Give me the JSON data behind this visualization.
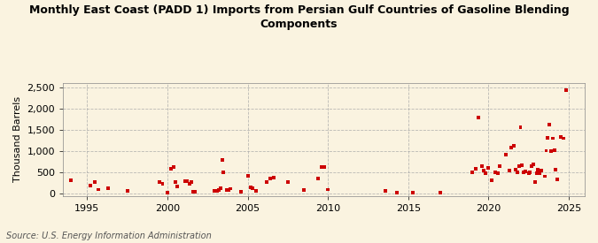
{
  "title": "Monthly East Coast (PADD 1) Imports from Persian Gulf Countries of Gasoline Blending\nComponents",
  "ylabel": "Thousand Barrels",
  "source": "Source: U.S. Energy Information Administration",
  "background_color": "#faf3e0",
  "marker_color": "#cc0000",
  "grid_color": "#aaaaaa",
  "xlim": [
    1993.5,
    2026.0
  ],
  "ylim": [
    -50,
    2600
  ],
  "yticks": [
    0,
    500,
    1000,
    1500,
    2000,
    2500
  ],
  "ytick_labels": [
    "0",
    "500",
    "1,000",
    "1,500",
    "2,000",
    "2,500"
  ],
  "xticks": [
    1995,
    2000,
    2005,
    2010,
    2015,
    2020,
    2025
  ],
  "data_x": [
    1994.0,
    1995.2,
    1995.5,
    1995.7,
    1996.3,
    1997.5,
    1999.5,
    1999.7,
    2000.0,
    2000.2,
    2000.4,
    2000.5,
    2000.6,
    2001.1,
    2001.2,
    2001.4,
    2001.5,
    2001.6,
    2001.7,
    2002.9,
    2003.1,
    2003.2,
    2003.3,
    2003.4,
    2003.5,
    2003.7,
    2003.8,
    2003.9,
    2004.6,
    2005.0,
    2005.2,
    2005.3,
    2005.5,
    2006.2,
    2006.4,
    2006.6,
    2007.5,
    2008.5,
    2009.4,
    2009.6,
    2009.8,
    2010.0,
    2013.6,
    2014.3,
    2015.3,
    2017.0,
    2019.0,
    2019.2,
    2019.4,
    2019.6,
    2019.7,
    2019.8,
    2020.0,
    2020.2,
    2020.4,
    2020.6,
    2020.7,
    2021.1,
    2021.3,
    2021.4,
    2021.6,
    2021.7,
    2021.8,
    2021.9,
    2022.0,
    2022.1,
    2022.2,
    2022.3,
    2022.5,
    2022.6,
    2022.7,
    2022.8,
    2022.9,
    2023.0,
    2023.1,
    2023.2,
    2023.3,
    2023.5,
    2023.6,
    2023.7,
    2023.8,
    2023.9,
    2024.0,
    2024.1,
    2024.2,
    2024.3,
    2024.5,
    2024.7,
    2024.85
  ],
  "data_y": [
    320,
    200,
    270,
    100,
    130,
    60,
    280,
    240,
    20,
    580,
    630,
    280,
    180,
    300,
    290,
    240,
    270,
    40,
    40,
    60,
    60,
    90,
    130,
    800,
    500,
    80,
    80,
    120,
    50,
    430,
    150,
    130,
    70,
    280,
    350,
    380,
    270,
    90,
    350,
    630,
    620,
    100,
    60,
    30,
    20,
    30,
    500,
    590,
    1780,
    650,
    550,
    480,
    610,
    310,
    500,
    480,
    640,
    920,
    540,
    1090,
    1120,
    570,
    500,
    640,
    1560,
    670,
    510,
    520,
    480,
    510,
    640,
    690,
    280,
    490,
    560,
    490,
    540,
    410,
    1010,
    1310,
    1620,
    1000,
    1300,
    1020,
    570,
    330,
    1340,
    1300,
    2430
  ]
}
